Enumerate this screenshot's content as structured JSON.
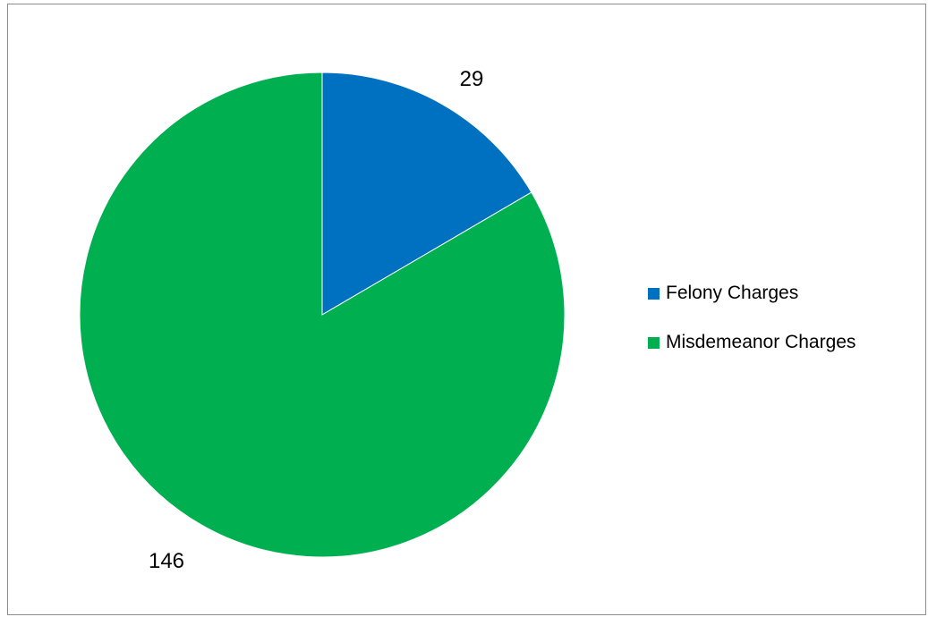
{
  "chart_data": {
    "type": "pie",
    "title": "",
    "slices": [
      {
        "label": "Felony Charges",
        "value": 29,
        "color": "#0070C0"
      },
      {
        "label": "Misdemeanor Charges",
        "value": 146,
        "color": "#00B050"
      }
    ],
    "start_angle_deg": 0,
    "direction": "clockwise",
    "legend_position": "right",
    "data_labels": [
      "29",
      "146"
    ]
  }
}
